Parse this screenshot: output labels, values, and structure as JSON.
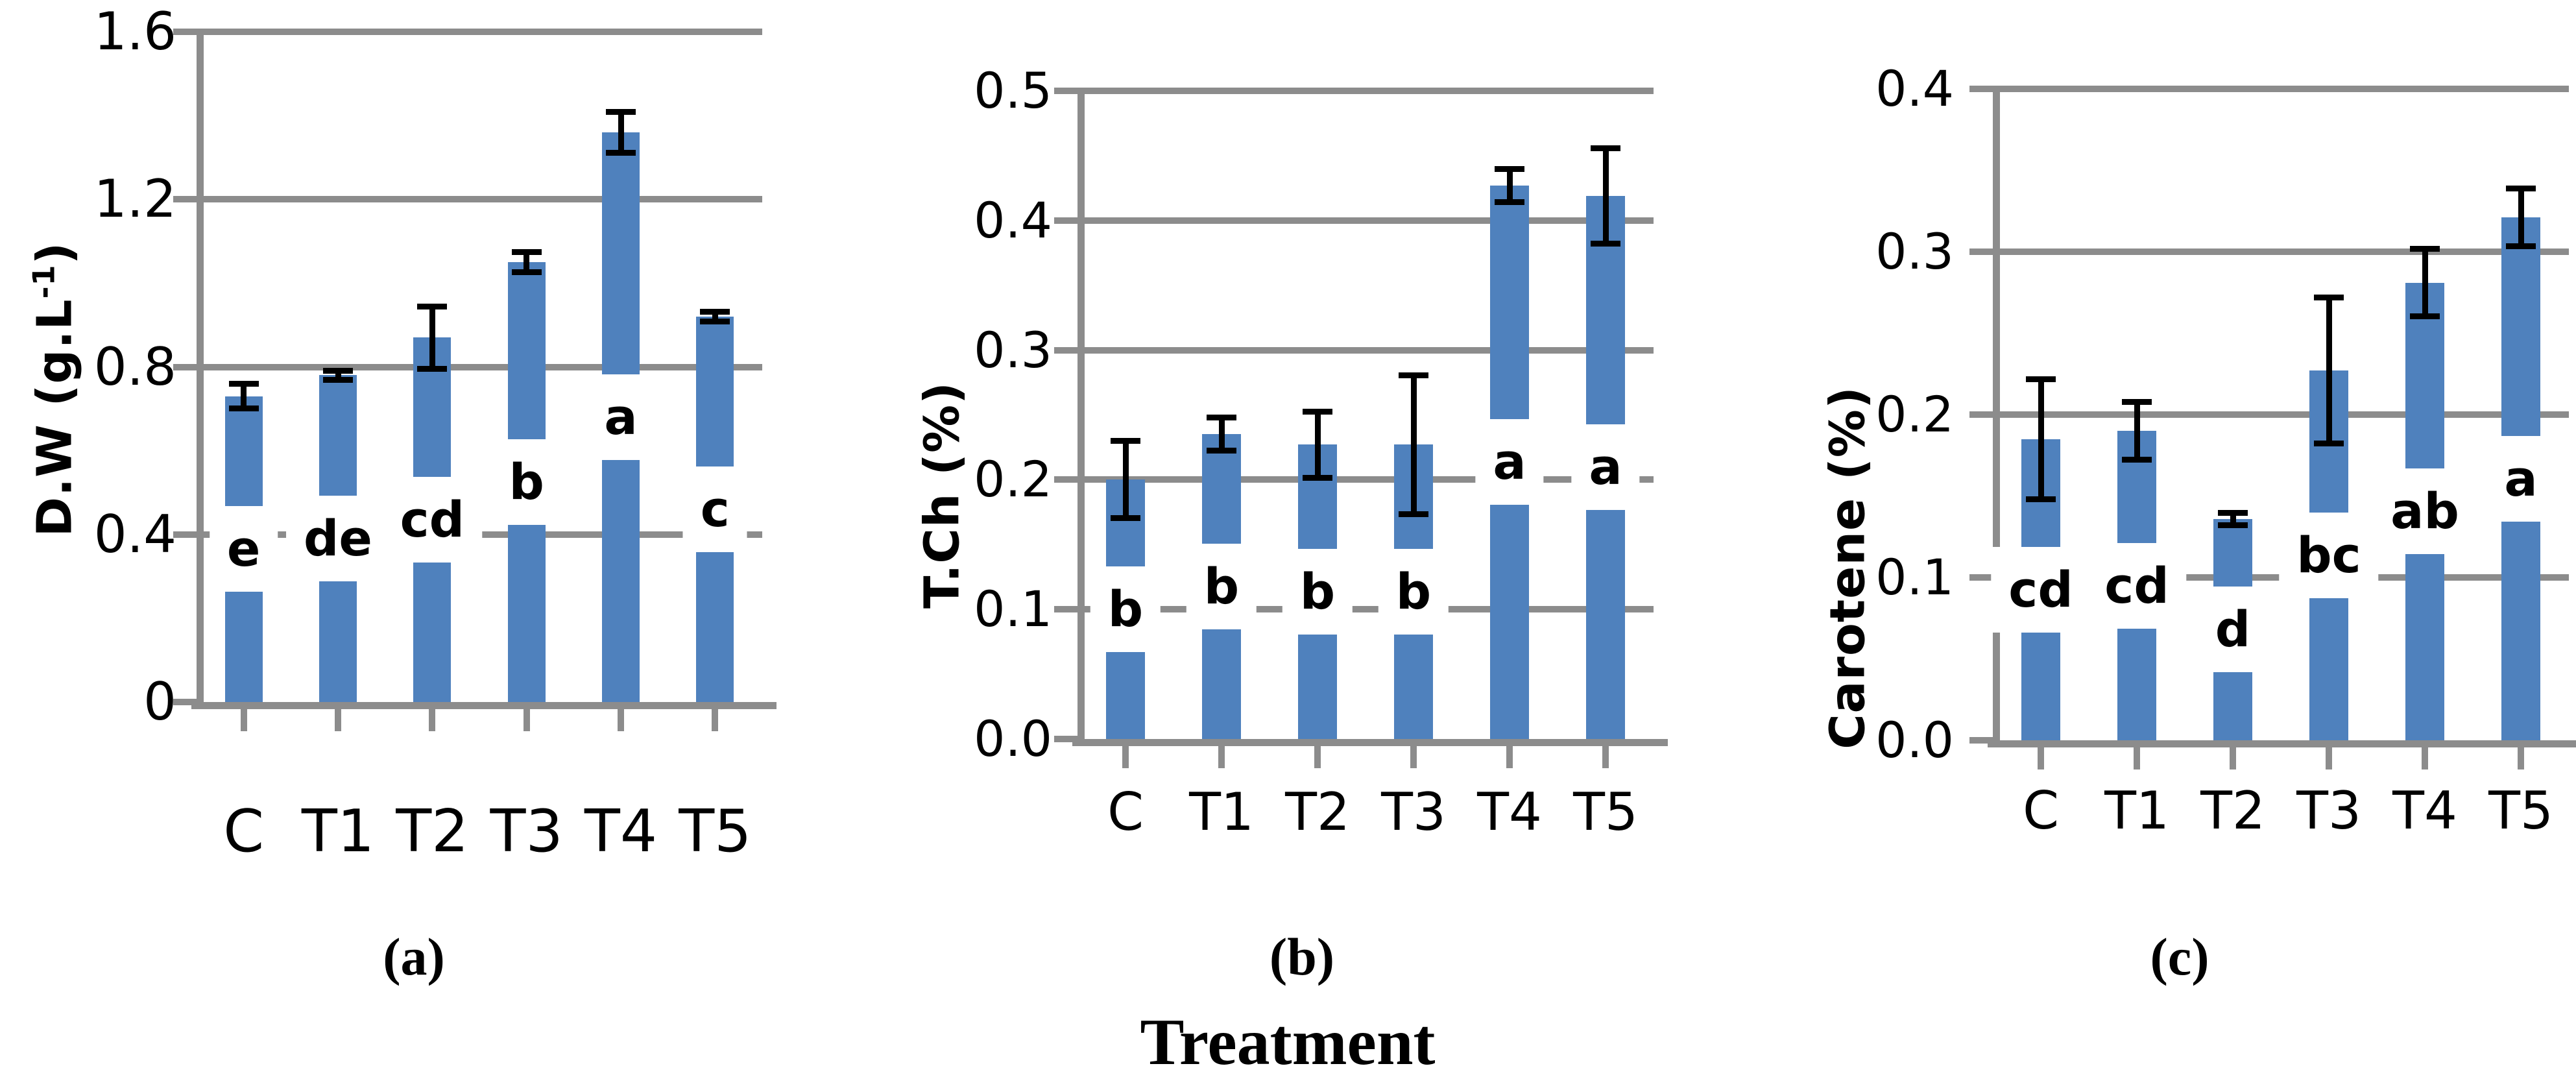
{
  "figure": {
    "x_axis_title": "Treatment",
    "background": "#FFFFFF"
  },
  "panels": [
    {
      "label": "(a)"
    },
    {
      "label": "(b)"
    },
    {
      "label": "(c)"
    }
  ],
  "colors": {
    "bar": "#4F81BD",
    "grid": "#8C8C8C",
    "axis": "#8C8C8C",
    "error_bar": "#000000",
    "text": "#000000",
    "letter_box_bg": "#FFFFFF"
  },
  "chart_data": [
    {
      "id": "a",
      "type": "bar",
      "panel": "(a)",
      "ylabel": "D.W (g.L-1)",
      "ylabel_prefix": "D.W (g.L",
      "ylabel_sup": "-1",
      "ylabel_suffix": ")",
      "xlabel": "Treatment",
      "categories": [
        "C",
        "T1",
        "T2",
        "T3",
        "T4",
        "T5"
      ],
      "values": [
        0.73,
        0.78,
        0.87,
        1.05,
        1.36,
        0.92
      ],
      "errors": [
        0.03,
        0.012,
        0.075,
        0.025,
        0.05,
        0.012
      ],
      "letters": [
        "e",
        "de",
        "cd",
        "b",
        "a",
        "c"
      ],
      "ylim": [
        0,
        1.6
      ],
      "ytick_labels": [
        "0",
        "0.4",
        "0.8",
        "1.2",
        "1.6"
      ],
      "ytick_values": [
        0,
        0.4,
        0.8,
        1.2,
        1.6
      ],
      "grid": true,
      "legend": false
    },
    {
      "id": "b",
      "type": "bar",
      "panel": "(b)",
      "ylabel": "T.Ch (%)",
      "ylabel_prefix": "T.Ch (%)",
      "ylabel_sup": "",
      "ylabel_suffix": "",
      "xlabel": "Treatment",
      "categories": [
        "C",
        "T1",
        "T2",
        "T3",
        "T4",
        "T5"
      ],
      "values": [
        0.2,
        0.235,
        0.227,
        0.227,
        0.427,
        0.419
      ],
      "errors": [
        0.03,
        0.013,
        0.026,
        0.054,
        0.013,
        0.037
      ],
      "letters": [
        "b",
        "b",
        "b",
        "b",
        "a",
        "a"
      ],
      "ylim": [
        0,
        0.5
      ],
      "ytick_labels": [
        "0.0",
        "0.1",
        "0.2",
        "0.3",
        "0.4",
        "0.5"
      ],
      "ytick_values": [
        0,
        0.1,
        0.2,
        0.3,
        0.4,
        0.5
      ],
      "grid": true,
      "legend": false
    },
    {
      "id": "c",
      "type": "bar",
      "panel": "(c)",
      "ylabel": "Carotene (%)",
      "ylabel_prefix": "Carotene (%)",
      "ylabel_sup": "",
      "ylabel_suffix": "",
      "xlabel": "Treatment",
      "categories": [
        "C",
        "T1",
        "T2",
        "T3",
        "T4",
        "T5"
      ],
      "values": [
        0.185,
        0.19,
        0.136,
        0.227,
        0.281,
        0.321
      ],
      "errors": [
        0.037,
        0.018,
        0.004,
        0.045,
        0.021,
        0.018
      ],
      "letters": [
        "cd",
        "cd",
        "d",
        "bc",
        "ab",
        "a"
      ],
      "ylim": [
        0,
        0.4
      ],
      "ytick_labels": [
        "0.0",
        "0.1",
        "0.2",
        "0.3",
        "0.4"
      ],
      "ytick_values": [
        0,
        0.1,
        0.2,
        0.3,
        0.4
      ],
      "grid": true,
      "legend": false
    }
  ]
}
